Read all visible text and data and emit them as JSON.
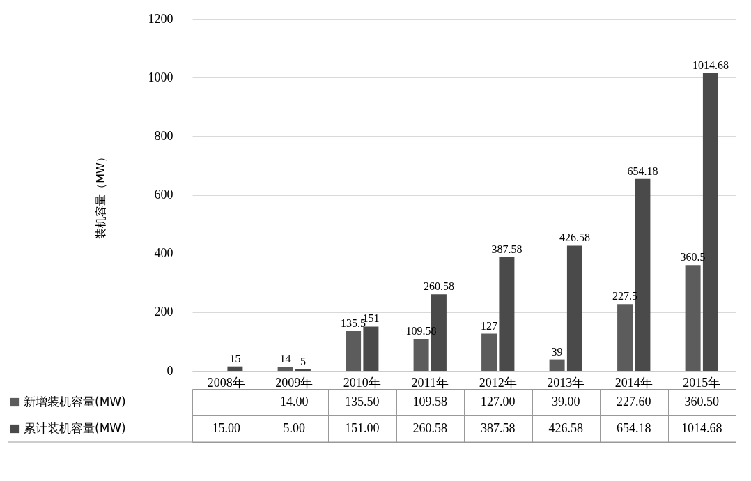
{
  "chart_data": {
    "type": "bar",
    "ylabel": "装机容量（MW）",
    "categories": [
      "2008年",
      "2009年",
      "2010年",
      "2011年",
      "2012年",
      "2013年",
      "2014年",
      "2015年"
    ],
    "series": [
      {
        "name": "新增装机容量(MW)",
        "color": "#5c5c5c",
        "values": [
          null,
          14,
          135.5,
          109.58,
          127,
          39,
          227.5,
          360.5
        ]
      },
      {
        "name": "累计装机容量(MW)",
        "color": "#4a4a4a",
        "values": [
          15,
          5,
          151,
          260.58,
          387.58,
          426.58,
          654.18,
          1014.68
        ]
      }
    ],
    "data_labels": true,
    "ylim": [
      0,
      1200
    ],
    "yticks": [
      0,
      200,
      400,
      600,
      800,
      1000,
      1200
    ],
    "grid": "y",
    "legend": "bottom",
    "annotations": [
      "14.00",
      "135.50",
      "109.58",
      "127.00",
      "39.00",
      "227.60",
      "360.50",
      "15.00",
      "5.00",
      "151.00",
      "260.58",
      "387.58",
      "426.58",
      "654.18",
      "1014.68"
    ]
  }
}
